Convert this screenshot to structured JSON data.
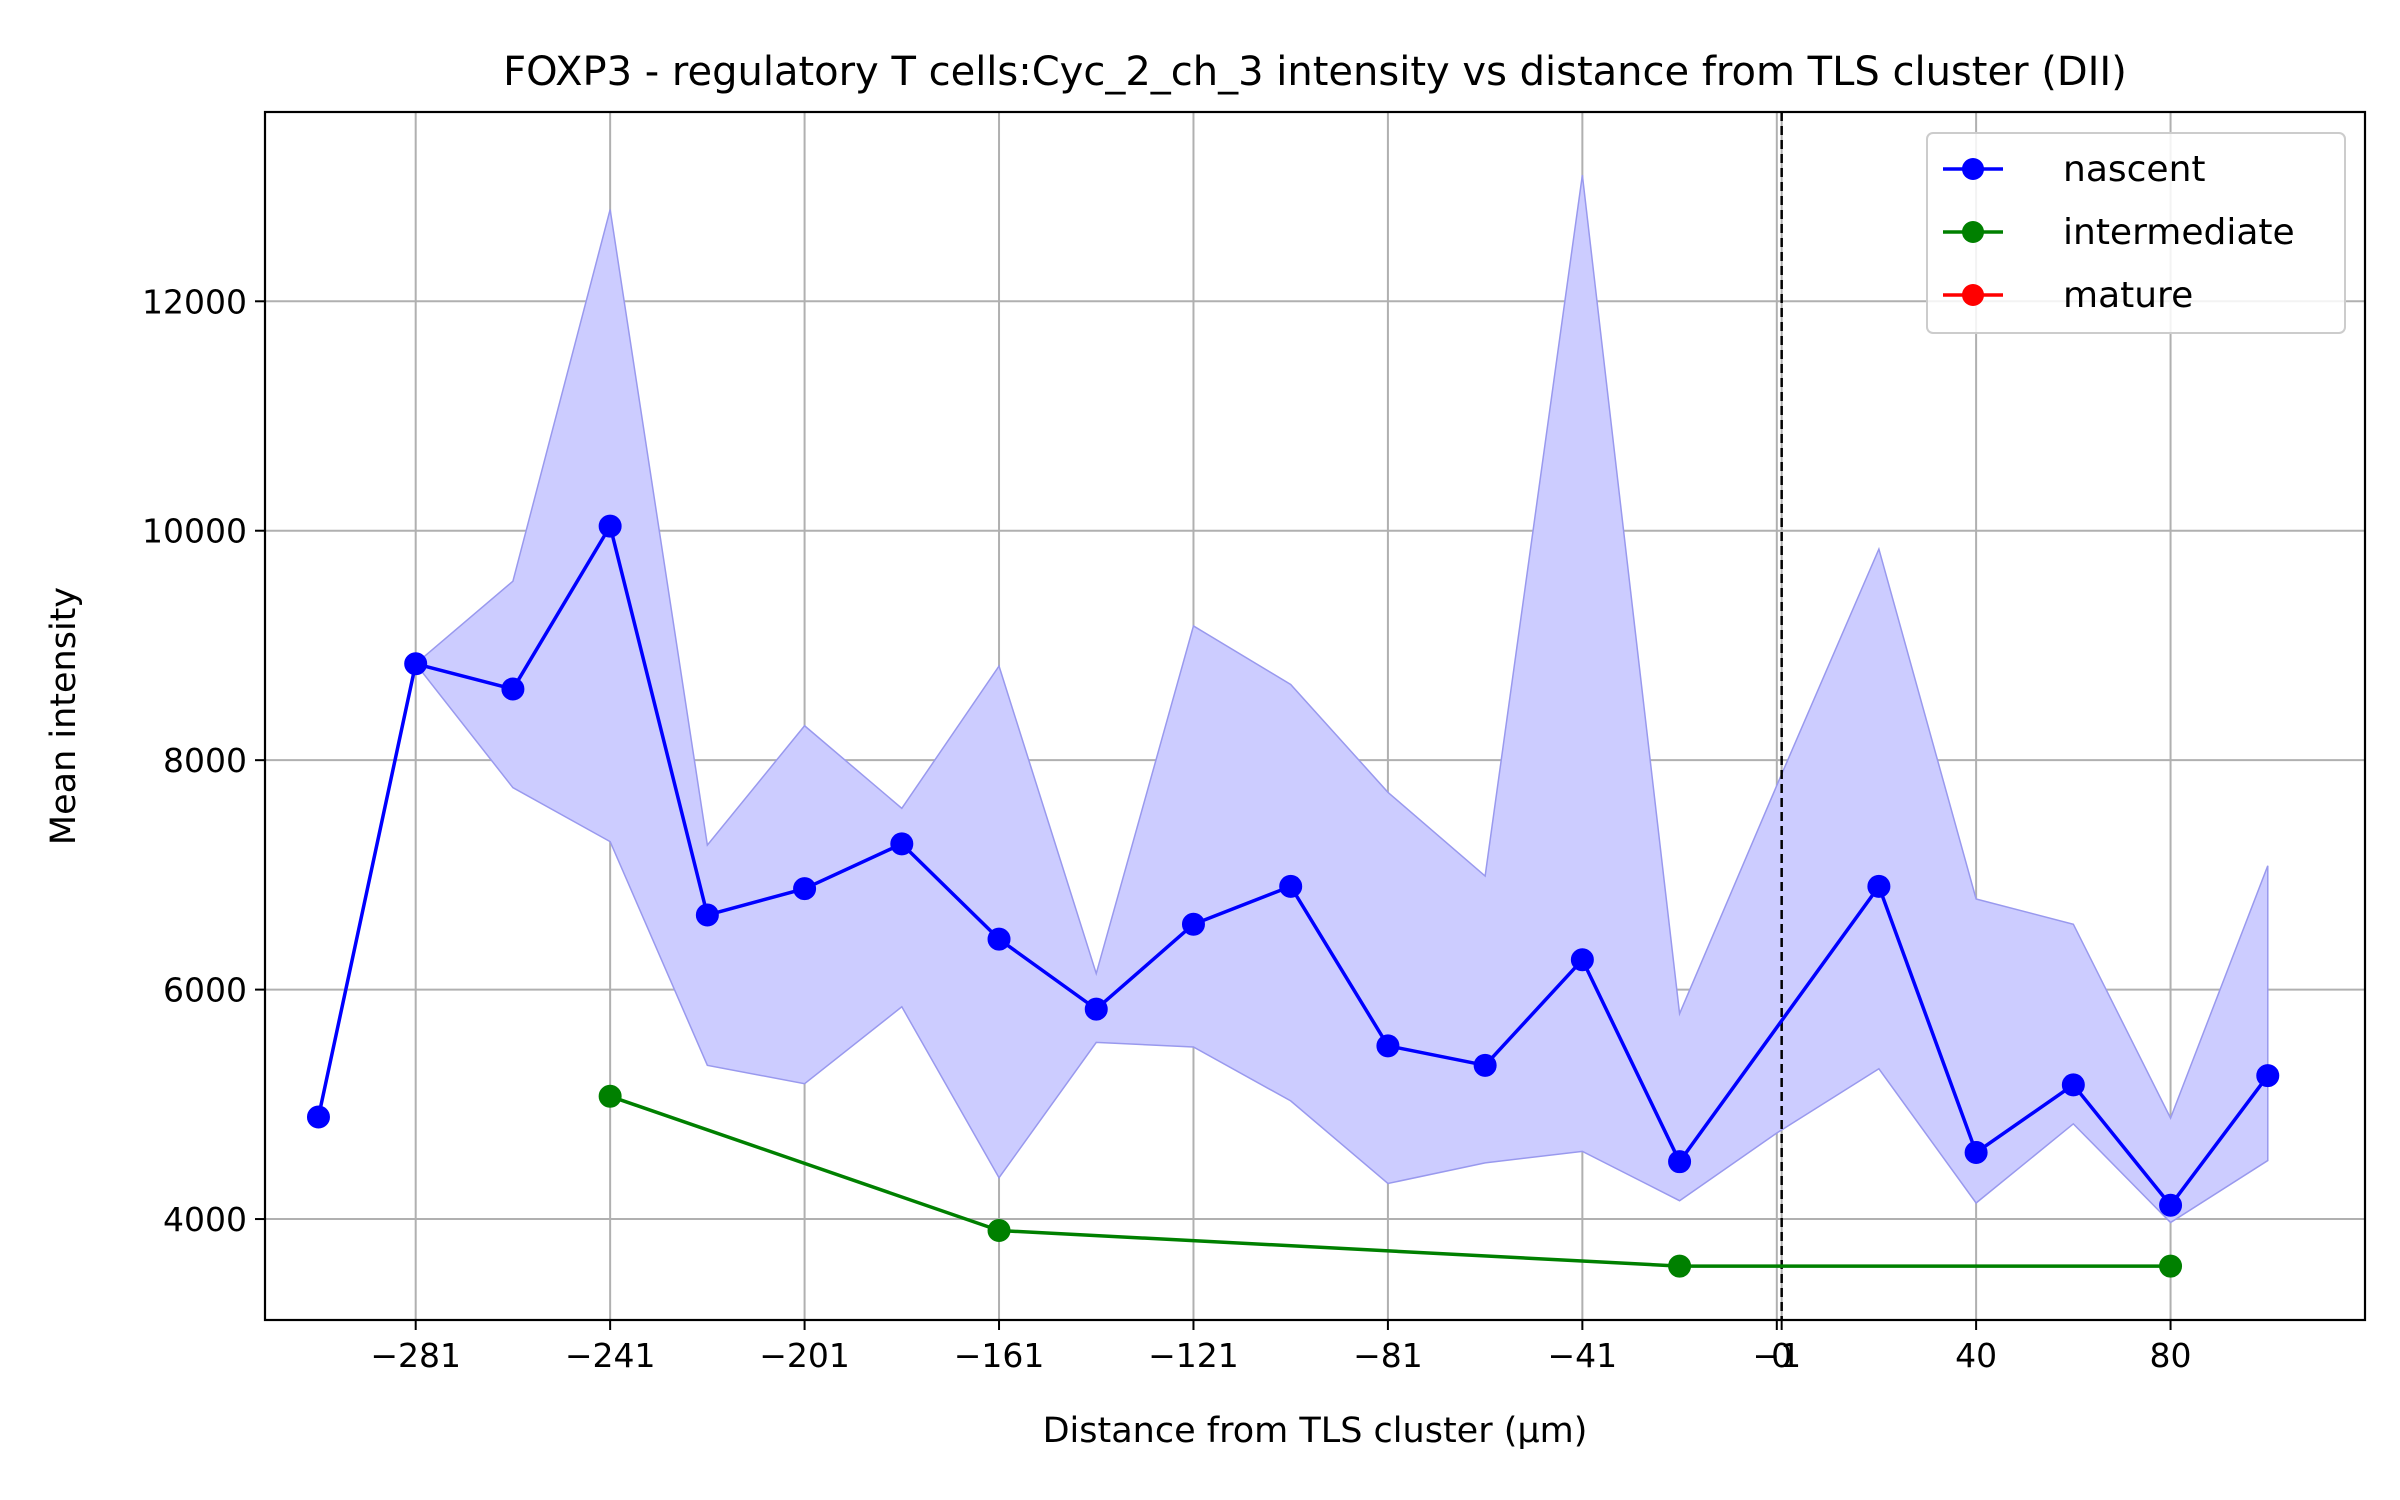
{
  "chart_data": {
    "type": "line",
    "title": "FOXP3 - regulatory T cells:Cyc_2_ch_3 intensity vs distance from TLS cluster (DII)",
    "xlabel": "Distance from TLS cluster (μm)",
    "ylabel": "Mean intensity",
    "xlim": [
      -312,
      120
    ],
    "ylim": [
      3120,
      13650
    ],
    "grid": true,
    "legend_position": "top-right",
    "x_ticks": [
      {
        "value": -281,
        "label": "−281"
      },
      {
        "value": -241,
        "label": "−241"
      },
      {
        "value": -201,
        "label": "−201"
      },
      {
        "value": -161,
        "label": "−161"
      },
      {
        "value": -121,
        "label": "−121"
      },
      {
        "value": -81,
        "label": "−81"
      },
      {
        "value": -41,
        "label": "−41"
      },
      {
        "value": -1,
        "label": "−1"
      },
      {
        "value": 0,
        "label": "0"
      },
      {
        "value": 40,
        "label": "40"
      },
      {
        "value": 80,
        "label": "80"
      }
    ],
    "y_ticks": [
      {
        "value": 4000,
        "label": "4000"
      },
      {
        "value": 6000,
        "label": "6000"
      },
      {
        "value": 8000,
        "label": "8000"
      },
      {
        "value": 10000,
        "label": "10000"
      },
      {
        "value": 12000,
        "label": "12000"
      }
    ],
    "vline": {
      "x": 0,
      "style": "dashed",
      "color": "#000000"
    },
    "series": [
      {
        "name": "nascent",
        "color": "#0000ff",
        "x": [
          -301,
          -281,
          -261,
          -241,
          -221,
          -201,
          -181,
          -161,
          -141,
          -121,
          -101,
          -81,
          -61,
          -41,
          -21,
          20,
          40,
          60,
          80,
          100
        ],
        "y": [
          4890,
          8840,
          8620,
          10040,
          6650,
          6880,
          7270,
          6440,
          5830,
          6570,
          6900,
          5510,
          5340,
          6260,
          4500,
          6900,
          4580,
          5170,
          4120,
          5250
        ],
        "band": {
          "color": "#ccccff",
          "x": [
            -281,
            -261,
            -241,
            -221,
            -201,
            -181,
            -161,
            -141,
            -121,
            -101,
            -81,
            -61,
            -41,
            -21,
            -1,
            20,
            40,
            60,
            80,
            100
          ],
          "upper": [
            8840,
            9560,
            12800,
            7260,
            8300,
            7580,
            8820,
            6140,
            9170,
            8660,
            7720,
            6990,
            13100,
            5790,
            7780,
            9840,
            6790,
            6570,
            4880,
            7080
          ],
          "lower": [
            8840,
            7760,
            7290,
            5340,
            5180,
            5850,
            4360,
            5540,
            5500,
            5030,
            4310,
            4490,
            4590,
            4160,
            4750,
            5310,
            4140,
            4830,
            3970,
            4510
          ]
        }
      },
      {
        "name": "intermediate",
        "color": "#008000",
        "x": [
          -241,
          -161,
          -21,
          80
        ],
        "y": [
          5070,
          3900,
          3590,
          3590
        ]
      },
      {
        "name": "mature",
        "color": "#ff0000",
        "x": [],
        "y": []
      }
    ]
  }
}
